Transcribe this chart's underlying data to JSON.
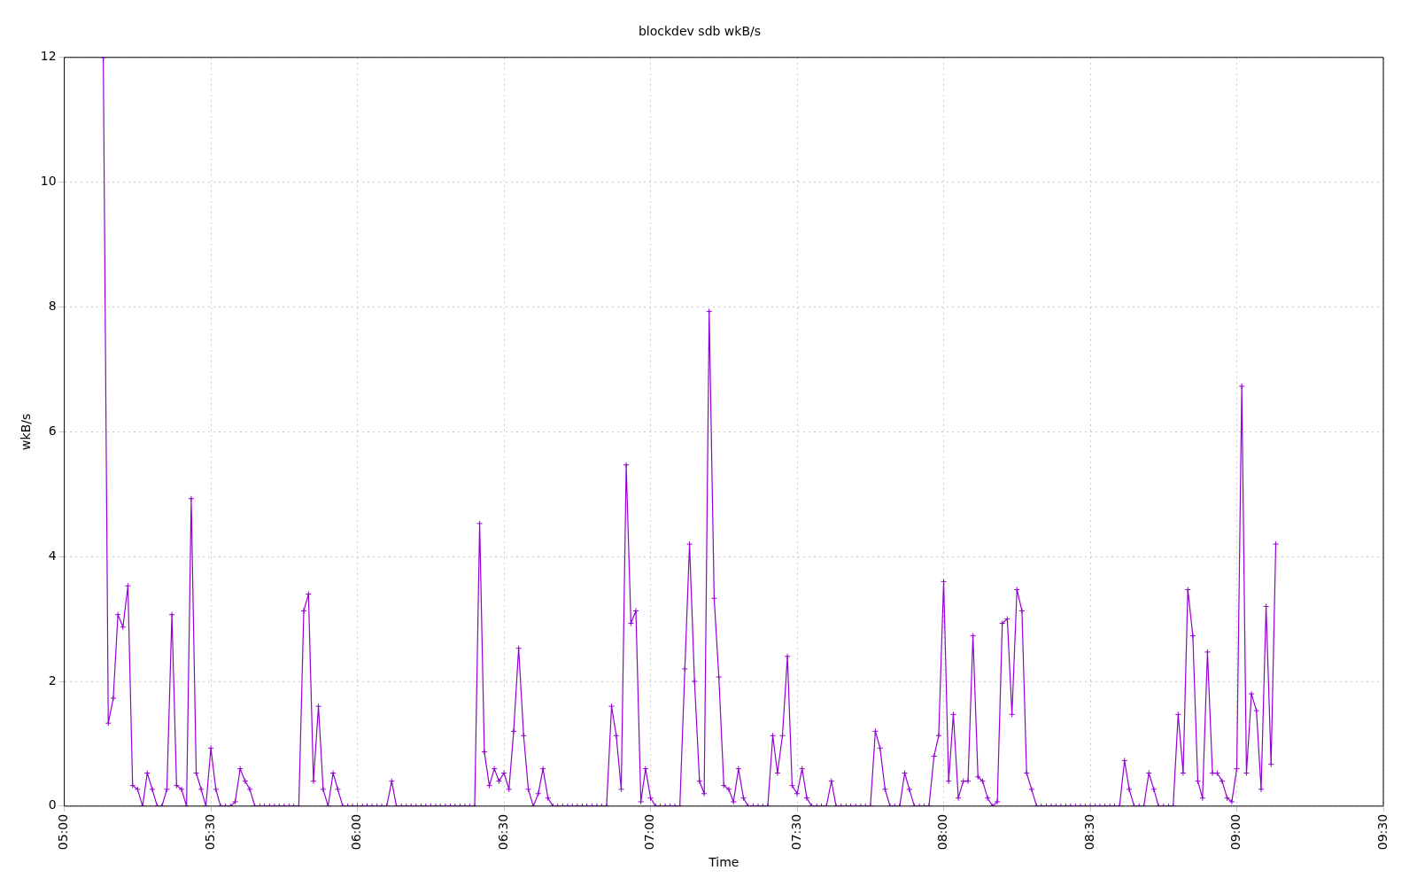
{
  "chart_data": {
    "type": "line",
    "title": "blockdev sdb wkB/s",
    "xlabel": "Time",
    "ylabel": "wkB/s",
    "xlim": [
      5,
      9.5
    ],
    "xticks": [
      {
        "value": 5,
        "label": "05:00"
      },
      {
        "value": 5.5,
        "label": "05:30"
      },
      {
        "value": 6,
        "label": "06:00"
      },
      {
        "value": 6.5,
        "label": "06:30"
      },
      {
        "value": 7,
        "label": "07:00"
      },
      {
        "value": 7.5,
        "label": "07:30"
      },
      {
        "value": 8,
        "label": "08:00"
      },
      {
        "value": 8.5,
        "label": "08:30"
      },
      {
        "value": 9,
        "label": "09:00"
      },
      {
        "value": 9.5,
        "label": "09:30"
      }
    ],
    "ylim": [
      0,
      12
    ],
    "yticks": [
      0,
      2,
      4,
      6,
      8,
      10,
      12
    ],
    "grid": true,
    "legend": false,
    "marker": "cross",
    "line_style": "solid",
    "series": [
      {
        "color": "#9400d3",
        "x": [
          5.133,
          5.15,
          5.167,
          5.183,
          5.2,
          5.217,
          5.233,
          5.25,
          5.267,
          5.283,
          5.3,
          5.317,
          5.333,
          5.35,
          5.367,
          5.383,
          5.4,
          5.417,
          5.433,
          5.45,
          5.467,
          5.483,
          5.5,
          5.517,
          5.533,
          5.55,
          5.567,
          5.583,
          5.6,
          5.617,
          5.633,
          5.65,
          5.667,
          5.683,
          5.7,
          5.717,
          5.733,
          5.75,
          5.767,
          5.783,
          5.8,
          5.817,
          5.833,
          5.85,
          5.867,
          5.883,
          5.9,
          5.917,
          5.933,
          5.95,
          5.967,
          5.983,
          6,
          6.017,
          6.033,
          6.05,
          6.067,
          6.083,
          6.1,
          6.117,
          6.133,
          6.15,
          6.167,
          6.183,
          6.2,
          6.217,
          6.233,
          6.25,
          6.267,
          6.283,
          6.3,
          6.317,
          6.333,
          6.35,
          6.367,
          6.383,
          6.4,
          6.417,
          6.433,
          6.45,
          6.467,
          6.483,
          6.5,
          6.517,
          6.533,
          6.55,
          6.567,
          6.583,
          6.6,
          6.617,
          6.633,
          6.65,
          6.667,
          6.683,
          6.7,
          6.717,
          6.733,
          6.75,
          6.767,
          6.783,
          6.8,
          6.817,
          6.833,
          6.85,
          6.867,
          6.883,
          6.9,
          6.917,
          6.933,
          6.95,
          6.967,
          6.983,
          7,
          7.017,
          7.033,
          7.05,
          7.067,
          7.083,
          7.1,
          7.117,
          7.133,
          7.15,
          7.167,
          7.183,
          7.2,
          7.217,
          7.233,
          7.25,
          7.267,
          7.283,
          7.3,
          7.317,
          7.333,
          7.35,
          7.367,
          7.383,
          7.4,
          7.417,
          7.433,
          7.45,
          7.467,
          7.483,
          7.5,
          7.517,
          7.533,
          7.55,
          7.567,
          7.583,
          7.6,
          7.617,
          7.633,
          7.65,
          7.667,
          7.683,
          7.7,
          7.717,
          7.733,
          7.75,
          7.767,
          7.783,
          7.8,
          7.817,
          7.833,
          7.85,
          7.867,
          7.883,
          7.9,
          7.917,
          7.933,
          7.95,
          7.967,
          7.983,
          8,
          8.017,
          8.033,
          8.05,
          8.067,
          8.083,
          8.1,
          8.117,
          8.133,
          8.15,
          8.167,
          8.183,
          8.2,
          8.217,
          8.233,
          8.25,
          8.267,
          8.283,
          8.3,
          8.317,
          8.333,
          8.35,
          8.367,
          8.383,
          8.4,
          8.417,
          8.433,
          8.45,
          8.467,
          8.483,
          8.5,
          8.517,
          8.533,
          8.55,
          8.567,
          8.583,
          8.6,
          8.617,
          8.633,
          8.65,
          8.667,
          8.683,
          8.7,
          8.717,
          8.733,
          8.75,
          8.767,
          8.783,
          8.8,
          8.817,
          8.833,
          8.85,
          8.867,
          8.883,
          8.9,
          8.917,
          8.933,
          8.95,
          8.967,
          8.983,
          9,
          9.017,
          9.033,
          9.05,
          9.067,
          9.083,
          9.1,
          9.117,
          9.133
        ],
        "values": [
          12,
          1.33,
          1.73,
          3.07,
          2.87,
          3.53,
          0.33,
          0.27,
          0,
          0.53,
          0.27,
          0,
          0,
          0.27,
          3.07,
          0.33,
          0.27,
          0,
          4.93,
          0.53,
          0.27,
          0,
          0.93,
          0.27,
          0,
          0,
          0,
          0.07,
          0.6,
          0.4,
          0.27,
          0,
          0,
          0,
          0,
          0,
          0,
          0,
          0,
          0,
          0,
          3.13,
          3.4,
          0.4,
          1.6,
          0.27,
          0,
          0.53,
          0.27,
          0,
          0,
          0,
          0,
          0,
          0,
          0,
          0,
          0,
          0,
          0.4,
          0,
          0,
          0,
          0,
          0,
          0,
          0,
          0,
          0,
          0,
          0,
          0,
          0,
          0,
          0,
          0,
          0,
          4.53,
          0.87,
          0.33,
          0.6,
          0.4,
          0.53,
          0.27,
          1.2,
          2.53,
          1.13,
          0.27,
          0,
          0.2,
          0.6,
          0.13,
          0,
          0,
          0,
          0,
          0,
          0,
          0,
          0,
          0,
          0,
          0,
          0,
          1.6,
          1.13,
          0.27,
          5.47,
          2.93,
          3.13,
          0.07,
          0.6,
          0.13,
          0,
          0,
          0,
          0,
          0,
          0,
          2.2,
          4.2,
          2,
          0.4,
          0.2,
          7.93,
          3.33,
          2.07,
          0.33,
          0.27,
          0.07,
          0.6,
          0.13,
          0,
          0,
          0,
          0,
          0,
          1.13,
          0.53,
          1.13,
          2.4,
          0.33,
          0.2,
          0.6,
          0.13,
          0,
          0,
          0,
          0,
          0.4,
          0,
          0,
          0,
          0,
          0,
          0,
          0,
          0,
          1.2,
          0.93,
          0.27,
          0,
          0,
          0,
          0.53,
          0.27,
          0,
          0,
          0,
          0,
          0.8,
          1.13,
          3.6,
          0.4,
          1.47,
          0.13,
          0.4,
          0.4,
          2.73,
          0.47,
          0.4,
          0.13,
          0,
          0.07,
          2.93,
          3,
          1.47,
          3.47,
          3.13,
          0.53,
          0.27,
          0,
          0,
          0,
          0,
          0,
          0,
          0,
          0,
          0,
          0,
          0,
          0,
          0,
          0,
          0,
          0,
          0,
          0,
          0.73,
          0.27,
          0,
          0,
          0,
          0.53,
          0.27,
          0,
          0,
          0,
          0,
          1.47,
          0.53,
          3.47,
          2.73,
          0.4,
          0.13,
          2.47,
          0.53,
          0.53,
          0.4,
          0.13,
          0.07,
          0.6,
          6.73,
          0.53,
          1.8,
          1.53,
          0.27,
          3.2,
          0.67,
          4.2
        ]
      }
    ]
  }
}
